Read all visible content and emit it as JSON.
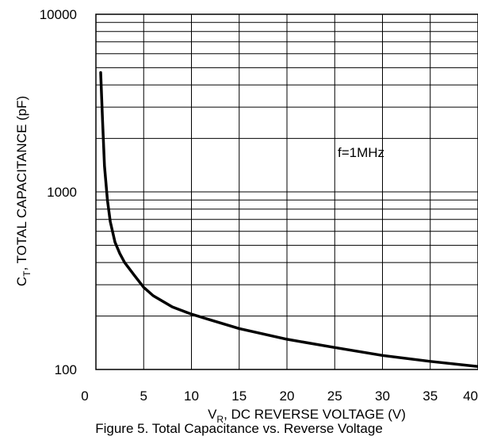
{
  "chart_data": {
    "type": "line",
    "title": "",
    "xlabel_parts": {
      "main": "V",
      "sub": "R",
      "rest": ", DC REVERSE VOLTAGE (V)"
    },
    "ylabel_parts": {
      "main": "C",
      "sub": "T",
      "rest": ", TOTAL CAPACITANCE (pF)"
    },
    "annotation": "f=1MHz",
    "caption": "Figure 5. Total Capacitance vs. Reverse Voltage",
    "x_scale": "linear",
    "y_scale": "log",
    "xlim": [
      0,
      40
    ],
    "ylim": [
      100,
      10000
    ],
    "x_ticks": [
      0,
      5,
      10,
      15,
      20,
      25,
      30,
      35,
      40
    ],
    "x_tick_labels": [
      "0",
      "5",
      "10",
      "15",
      "20",
      "25",
      "30",
      "35",
      "40"
    ],
    "y_ticks": [
      100,
      1000,
      10000
    ],
    "y_tick_labels": [
      "100",
      "1000",
      "10000"
    ],
    "grid": true,
    "series": [
      {
        "x": [
          0.5,
          0.7,
          0.9,
          1.2,
          1.5,
          2.0,
          2.5,
          3.0,
          4.0,
          5.0,
          6.0,
          8.0,
          10.0,
          12.0,
          15.0,
          20.0,
          25.0,
          30.0,
          35.0,
          40.0
        ],
        "y": [
          4700,
          2500,
          1400,
          900,
          680,
          520,
          450,
          400,
          340,
          290,
          260,
          225,
          205,
          190,
          170,
          148,
          133,
          120,
          111,
          104
        ]
      }
    ]
  }
}
